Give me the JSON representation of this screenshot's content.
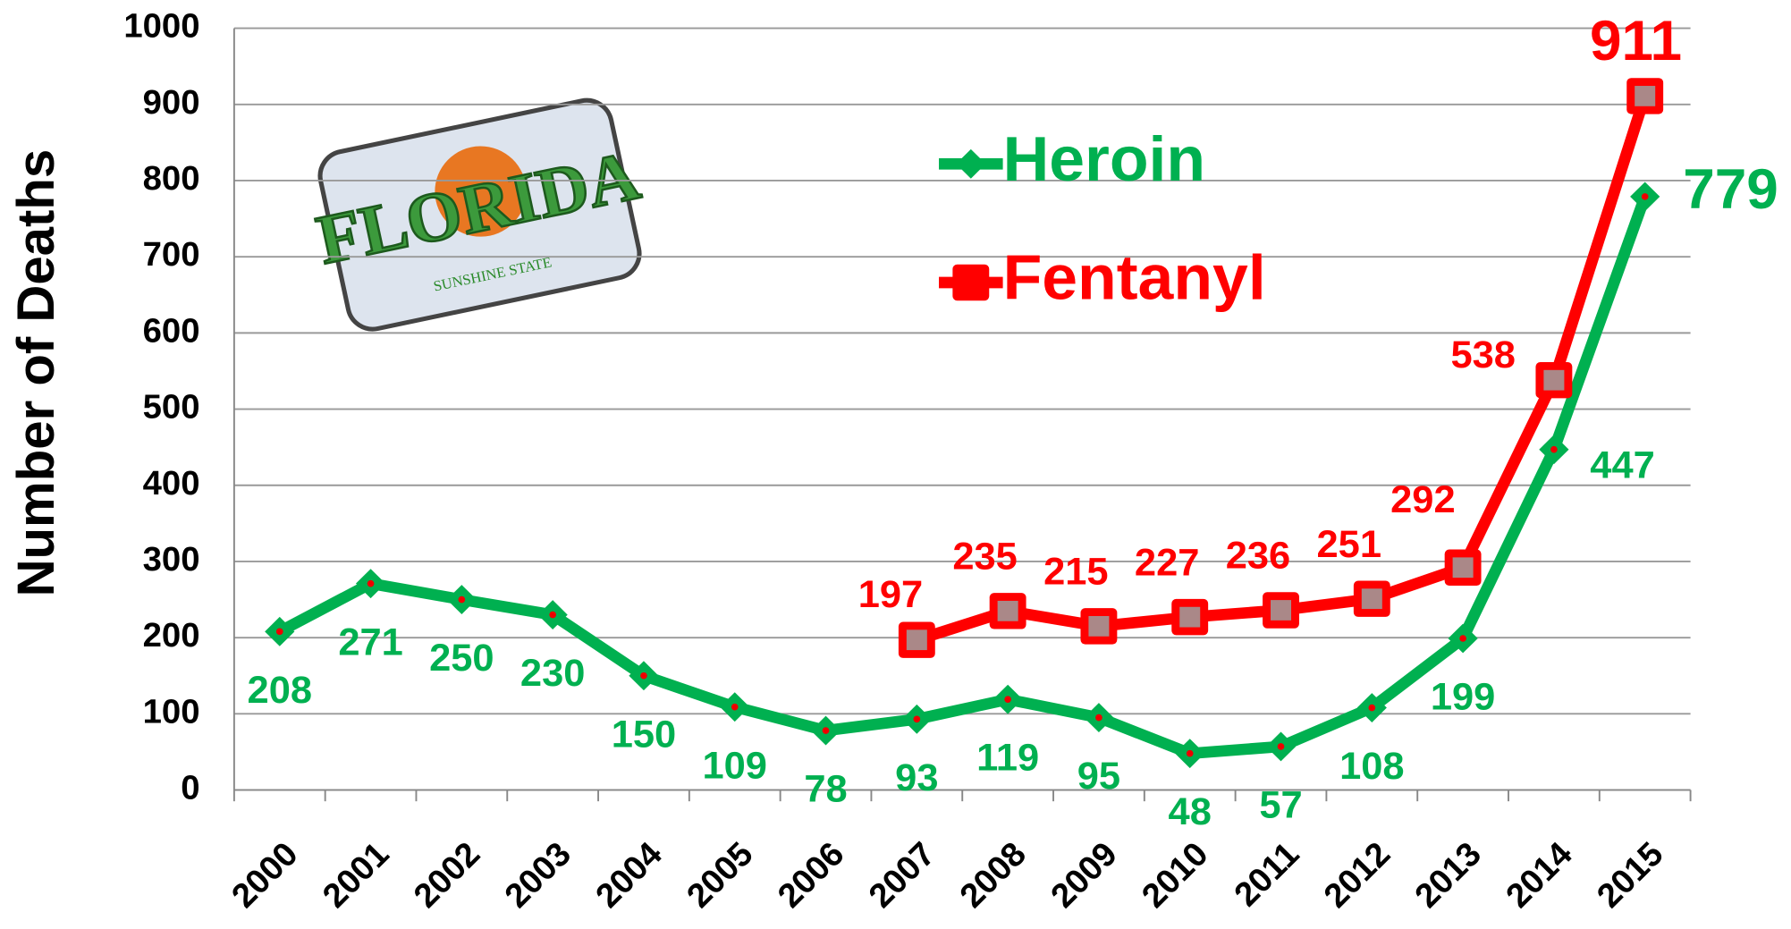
{
  "chart_data": {
    "type": "line",
    "ylabel": "Number of Deaths",
    "categories": [
      "2000",
      "2001",
      "2002",
      "2003",
      "2004",
      "2005",
      "2006",
      "2007",
      "2008",
      "2009",
      "2010",
      "2011",
      "2012",
      "2013",
      "2014",
      "2015"
    ],
    "series": [
      {
        "name": "Heroin",
        "color": "#00b050",
        "values": [
          208,
          271,
          250,
          230,
          150,
          109,
          78,
          93,
          119,
          95,
          48,
          57,
          108,
          199,
          447,
          779
        ]
      },
      {
        "name": "Fentanyl",
        "color": "#ff0000",
        "values": [
          null,
          null,
          null,
          null,
          null,
          null,
          null,
          197,
          235,
          215,
          227,
          236,
          251,
          292,
          538,
          911
        ]
      }
    ],
    "ylim": [
      0,
      1000
    ],
    "yticks": [
      0,
      100,
      200,
      300,
      400,
      500,
      600,
      700,
      800,
      900,
      1000
    ],
    "grid": true,
    "annotations": [
      "FLORIDA",
      "SUNSHINE STATE"
    ]
  }
}
